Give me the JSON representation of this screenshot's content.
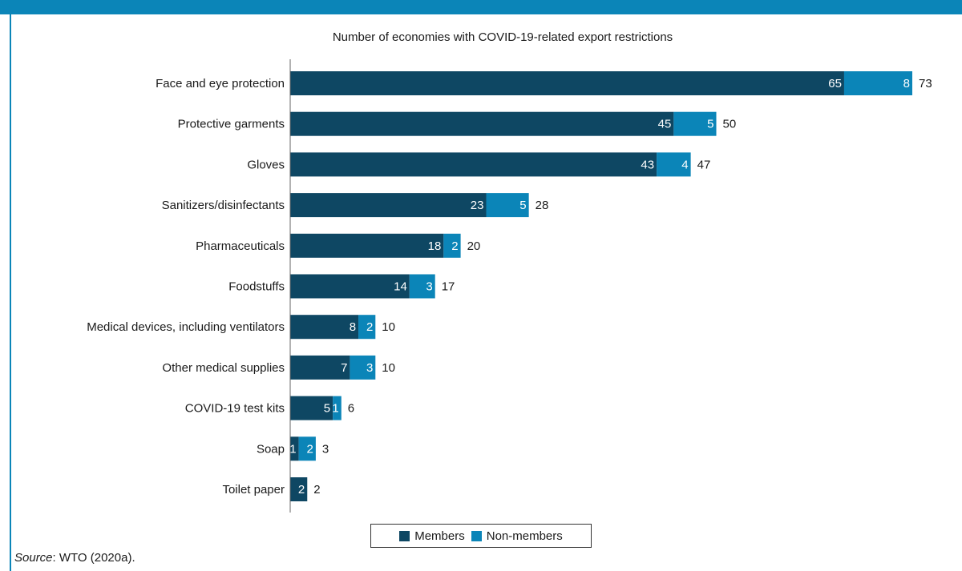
{
  "chart_data": {
    "type": "bar",
    "orientation": "horizontal",
    "stacked": true,
    "title": "Number of economies with COVID-19-related export restrictions",
    "categories": [
      "Face and eye protection",
      "Protective garments",
      "Gloves",
      "Sanitizers/disinfectants",
      "Pharmaceuticals",
      "Foodstuffs",
      "Medical devices, including ventilators",
      "Other medical supplies",
      "COVID-19 test kits",
      "Soap",
      "Toilet paper"
    ],
    "series": [
      {
        "name": "Members",
        "values": [
          65,
          45,
          43,
          23,
          18,
          14,
          8,
          7,
          5,
          1,
          2
        ],
        "color": "#0e4763"
      },
      {
        "name": "Non-members",
        "values": [
          8,
          5,
          4,
          5,
          2,
          3,
          2,
          3,
          1,
          2,
          0
        ],
        "color": "#0b85b8"
      }
    ],
    "totals": [
      73,
      50,
      47,
      28,
      20,
      17,
      10,
      10,
      6,
      3,
      2
    ],
    "xlim": [
      0,
      73
    ],
    "legend_position": "bottom",
    "grid": false
  },
  "source": {
    "label": "Source",
    "text": ": WTO (2020a)."
  }
}
